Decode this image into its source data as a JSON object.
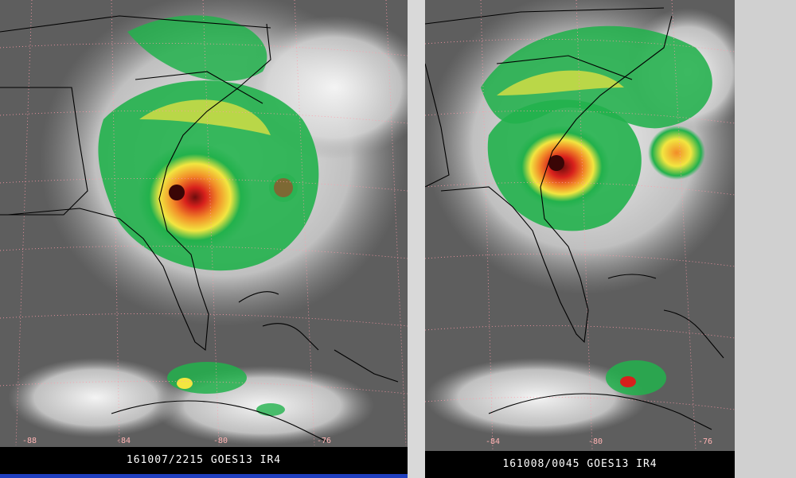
{
  "panels": [
    {
      "caption": "161007/2215 GOES13  IR4",
      "lon_labels": [
        "-88",
        "-84",
        "-80",
        "-76"
      ]
    },
    {
      "caption": "161008/0045 GOES13  IR4",
      "lon_labels": [
        "-84",
        "-80",
        "-76"
      ]
    }
  ],
  "colors": {
    "background_gray": "#5a5a5a",
    "cloud_white": "#f0f0f0",
    "green": "#22b14c",
    "yellow": "#f2e640",
    "orange": "#f28c28",
    "red": "#d8201c",
    "dark_red": "#6e0d0d",
    "grid": "#ff9aa8",
    "caption_bar": "#000000"
  }
}
